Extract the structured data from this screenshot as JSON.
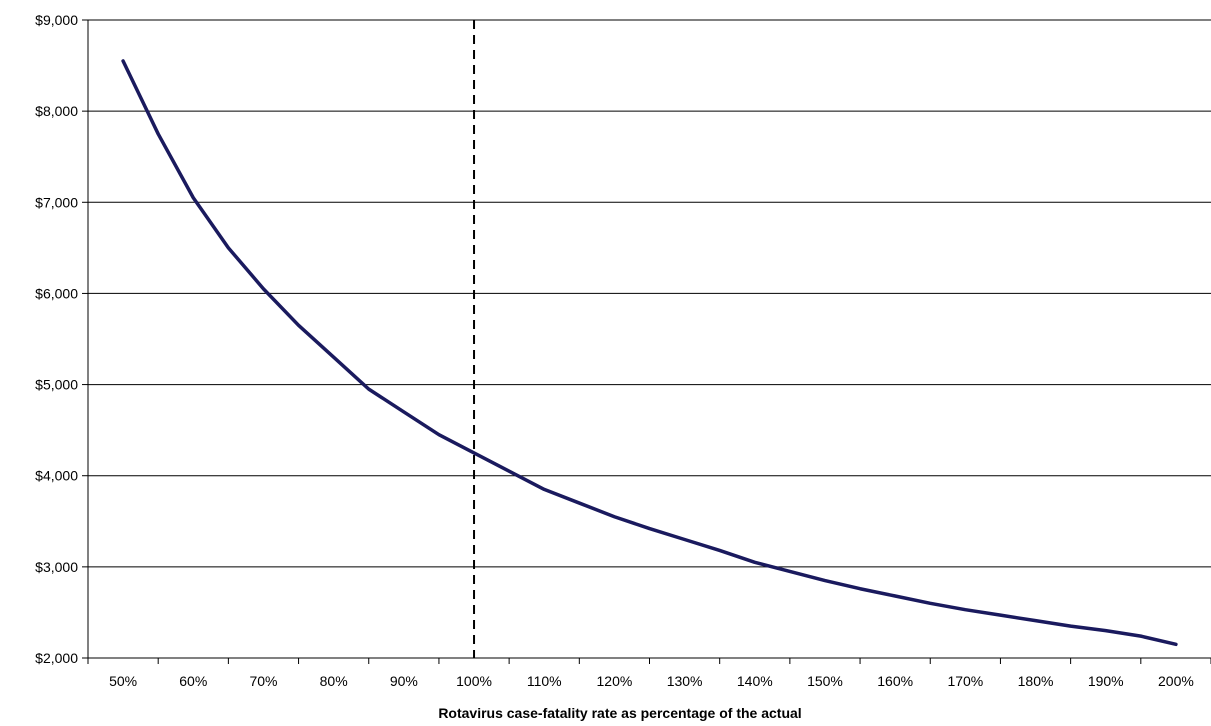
{
  "chart_data": {
    "type": "line",
    "title": "",
    "xlabel": "Rotavirus case-fatality rate as percentage of the actual",
    "ylabel": "",
    "x_tick_labels": [
      "50%",
      "60%",
      "70%",
      "80%",
      "90%",
      "100%",
      "110%",
      "120%",
      "130%",
      "140%",
      "150%",
      "160%",
      "170%",
      "180%",
      "190%",
      "200%"
    ],
    "y_tick_labels": [
      "$2,000",
      "$3,000",
      "$4,000",
      "$5,000",
      "$6,000",
      "$7,000",
      "$8,000",
      "$9,000"
    ],
    "ylim": [
      2000,
      9000
    ],
    "xlim": [
      50,
      200
    ],
    "gridlines": "horizontal",
    "reference_line": {
      "x": 100,
      "style": "dashed"
    },
    "line_color": "#1a1a5e",
    "series": [
      {
        "x": [
          50,
          55,
          60,
          65,
          70,
          75,
          80,
          85,
          90,
          95,
          100,
          105,
          110,
          115,
          120,
          125,
          130,
          135,
          140,
          145,
          150,
          155,
          160,
          165,
          170,
          175,
          180,
          185,
          190,
          195,
          200
        ],
        "values": [
          8550,
          7750,
          7050,
          6500,
          6050,
          5650,
          5300,
          4950,
          4700,
          4450,
          4250,
          4050,
          3850,
          3700,
          3550,
          3420,
          3300,
          3180,
          3050,
          2950,
          2850,
          2760,
          2680,
          2600,
          2530,
          2470,
          2410,
          2350,
          2300,
          2240,
          2150
        ]
      }
    ]
  }
}
